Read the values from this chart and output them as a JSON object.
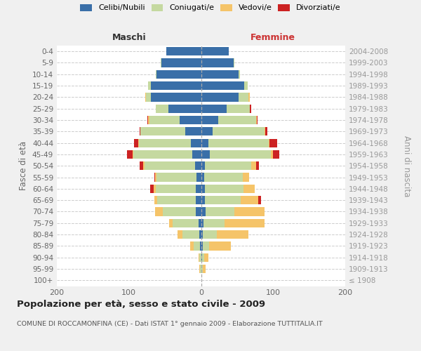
{
  "age_groups": [
    "100+",
    "95-99",
    "90-94",
    "85-89",
    "80-84",
    "75-79",
    "70-74",
    "65-69",
    "60-64",
    "55-59",
    "50-54",
    "45-49",
    "40-44",
    "35-39",
    "30-34",
    "25-29",
    "20-24",
    "15-19",
    "10-14",
    "5-9",
    "0-4"
  ],
  "birth_years": [
    "≤ 1908",
    "1909-1913",
    "1914-1918",
    "1919-1923",
    "1924-1928",
    "1929-1933",
    "1934-1938",
    "1939-1943",
    "1944-1948",
    "1949-1953",
    "1954-1958",
    "1959-1963",
    "1964-1968",
    "1969-1973",
    "1974-1978",
    "1979-1983",
    "1984-1988",
    "1989-1993",
    "1994-1998",
    "1999-2003",
    "2004-2008"
  ],
  "males_celibi": [
    0,
    0,
    0,
    1,
    2,
    3,
    7,
    7,
    7,
    6,
    8,
    12,
    14,
    22,
    30,
    45,
    70,
    70,
    62,
    55,
    48
  ],
  "males_coniugati": [
    0,
    1,
    2,
    9,
    24,
    36,
    46,
    54,
    56,
    56,
    70,
    82,
    72,
    62,
    42,
    18,
    6,
    3,
    1,
    1,
    0
  ],
  "males_vedovi": [
    0,
    1,
    1,
    5,
    7,
    5,
    11,
    4,
    3,
    2,
    2,
    1,
    1,
    0,
    1,
    0,
    1,
    0,
    0,
    0,
    0
  ],
  "males_divorziati": [
    0,
    0,
    0,
    0,
    0,
    0,
    0,
    0,
    5,
    1,
    5,
    8,
    6,
    1,
    1,
    0,
    0,
    0,
    0,
    0,
    0
  ],
  "females_nubili": [
    0,
    0,
    1,
    2,
    2,
    3,
    6,
    5,
    5,
    4,
    5,
    12,
    10,
    16,
    24,
    36,
    52,
    60,
    52,
    45,
    38
  ],
  "females_coniugate": [
    0,
    2,
    3,
    9,
    20,
    30,
    40,
    50,
    54,
    54,
    65,
    85,
    84,
    72,
    52,
    32,
    14,
    5,
    2,
    1,
    0
  ],
  "females_vedove": [
    0,
    4,
    6,
    30,
    44,
    55,
    42,
    24,
    15,
    9,
    6,
    3,
    1,
    1,
    1,
    0,
    2,
    0,
    0,
    0,
    0
  ],
  "females_divorziate": [
    0,
    0,
    0,
    0,
    0,
    0,
    0,
    4,
    0,
    0,
    4,
    9,
    11,
    3,
    1,
    2,
    0,
    0,
    0,
    0,
    0
  ],
  "color_celibi": "#3a6fa8",
  "color_coniugati": "#c5d9a0",
  "color_vedovi": "#f5c469",
  "color_divorziati": "#cc2222",
  "xlim": 200,
  "bg_color": "#f0f0f0",
  "plot_bg": "#ffffff",
  "title": "Popolazione per età, sesso e stato civile - 2009",
  "subtitle": "COMUNE DI ROCCAMONFINA (CE) - Dati ISTAT 1° gennaio 2009 - Elaborazione TUTTITALIA.IT",
  "ylabel_left": "Fasce di età",
  "ylabel_right": "Anni di nascita",
  "label_maschi": "Maschi",
  "label_femmine": "Femmine",
  "legend_labels": [
    "Celibi/Nubili",
    "Coniugati/e",
    "Vedovi/e",
    "Divorziati/e"
  ]
}
